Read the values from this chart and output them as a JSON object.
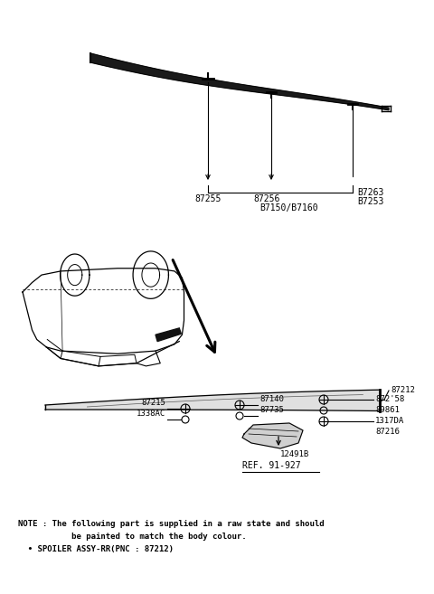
{
  "bg_color": "#ffffff",
  "fig_width": 4.8,
  "fig_height": 6.57,
  "dpi": 100,
  "note_line1": "NOTE : The following part is supplied in a raw state and should",
  "note_line2": "           be painted to match the body colour.",
  "note_line3": "  • SPOILER ASSY-RR(PNC : 87212)"
}
